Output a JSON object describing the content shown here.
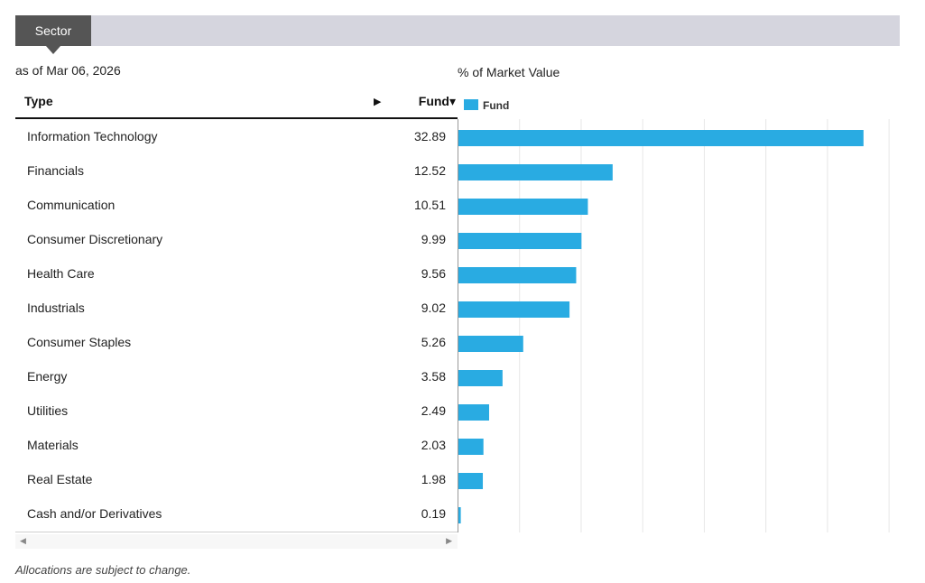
{
  "tab": {
    "label": "Sector"
  },
  "as_of": "as of Mar 06, 2026",
  "table": {
    "col_type": "Type",
    "col_fund": "Fund▾",
    "sort_glyph": "▶"
  },
  "scroll": {
    "left_glyph": "◀",
    "right_glyph": "▶"
  },
  "footnote": "Allocations are subject to change.",
  "colors": {
    "bar": "#29abe2",
    "grid": "#e6e6e6",
    "axis": "#999999"
  },
  "chart_data": {
    "type": "bar",
    "orientation": "horizontal",
    "title": "% of Market Value",
    "categories": [
      "Information Technology",
      "Financials",
      "Communication",
      "Consumer Discretionary",
      "Health Care",
      "Industrials",
      "Consumer Staples",
      "Energy",
      "Utilities",
      "Materials",
      "Real Estate",
      "Cash and/or Derivatives"
    ],
    "value_labels": [
      "32.89",
      "12.52",
      "10.51",
      "9.99",
      "9.56",
      "9.02",
      "5.26",
      "3.58",
      "2.49",
      "2.03",
      "1.98",
      "0.19"
    ],
    "series": [
      {
        "name": "Fund",
        "values": [
          32.89,
          12.52,
          10.51,
          9.99,
          9.56,
          9.02,
          5.26,
          3.58,
          2.49,
          2.03,
          1.98,
          0.19
        ]
      }
    ],
    "xlim": [
      0,
      35
    ],
    "grid_step": 5,
    "grid": true,
    "legend": "top-left"
  }
}
